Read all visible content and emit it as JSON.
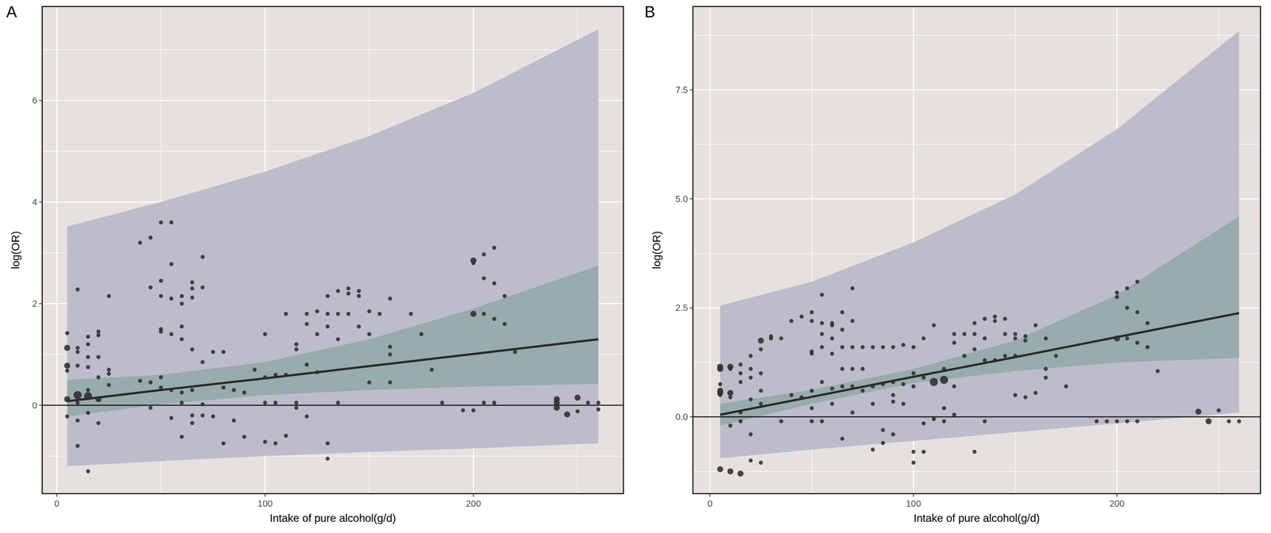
{
  "chart_data": [
    {
      "type": "scatter",
      "title": "A",
      "xlabel": "Intake of pure alcohol(g/d)",
      "ylabel": "log(OR)",
      "xlim": [
        -7,
        272
      ],
      "ylim": [
        -1.74,
        7.85
      ],
      "xticks": [
        0,
        100,
        200
      ],
      "yticks": [
        0,
        2,
        4,
        6
      ],
      "grid": true,
      "reference_line": 0,
      "series": [
        {
          "type": "band",
          "color": "#bcbccb",
          "x": [
            5,
            50,
            100,
            150,
            200,
            260
          ],
          "lower": [
            -1.2,
            -1.1,
            -1.0,
            -0.92,
            -0.85,
            -0.75
          ],
          "upper": [
            3.52,
            4.0,
            4.6,
            5.3,
            6.15,
            7.4
          ]
        },
        {
          "type": "band",
          "color": "#98abad",
          "x": [
            5,
            50,
            100,
            150,
            200,
            260
          ],
          "lower": [
            -0.22,
            0.02,
            0.2,
            0.3,
            0.37,
            0.42
          ],
          "upper": [
            0.5,
            0.6,
            0.85,
            1.3,
            1.9,
            2.75
          ]
        },
        {
          "type": "line",
          "color": "#2a2a2a",
          "x": [
            5,
            50,
            100,
            150,
            200,
            260
          ],
          "values": [
            0.08,
            0.3,
            0.53,
            0.77,
            1.01,
            1.3
          ]
        },
        {
          "type": "scatter",
          "color": "#2e2e2e",
          "marker": "circle",
          "x": [
            5,
            5,
            5,
            5,
            5,
            5,
            10,
            10,
            10,
            10,
            10,
            10,
            10,
            10,
            15,
            15,
            15,
            15,
            15,
            15,
            15,
            15,
            20,
            20,
            20,
            20,
            20,
            20,
            25,
            25,
            25,
            25,
            40,
            40,
            45,
            45,
            45,
            45,
            50,
            50,
            50,
            50,
            50,
            50,
            50,
            55,
            55,
            55,
            55,
            55,
            55,
            60,
            60,
            60,
            60,
            60,
            60,
            60,
            65,
            65,
            65,
            65,
            65,
            65,
            65,
            70,
            70,
            70,
            70,
            70,
            75,
            75,
            80,
            80,
            80,
            85,
            85,
            90,
            90,
            95,
            100,
            100,
            100,
            100,
            105,
            105,
            105,
            110,
            110,
            110,
            115,
            115,
            115,
            115,
            120,
            120,
            120,
            120,
            125,
            125,
            125,
            130,
            130,
            130,
            130,
            130,
            135,
            135,
            135,
            135,
            140,
            140,
            140,
            145,
            145,
            145,
            150,
            150,
            150,
            155,
            160,
            160,
            160,
            160,
            170,
            175,
            180,
            185,
            195,
            200,
            200,
            200,
            200,
            205,
            205,
            205,
            205,
            210,
            210,
            210,
            210,
            215,
            215,
            220,
            240,
            240,
            240,
            245,
            250,
            250,
            255,
            260,
            260
          ],
          "values": [
            1.42,
            1.13,
            0.78,
            0.68,
            0.12,
            -0.22,
            2.28,
            1.13,
            1.05,
            0.78,
            0.2,
            -0.3,
            -0.8,
            0.05,
            1.35,
            1.2,
            0.95,
            0.75,
            0.3,
            0.18,
            -0.15,
            -1.3,
            1.45,
            1.38,
            0.95,
            0.55,
            0.12,
            -0.35,
            2.15,
            0.7,
            0.62,
            0.4,
            3.2,
            0.48,
            3.3,
            2.32,
            0.45,
            -0.05,
            3.6,
            2.45,
            2.15,
            1.5,
            1.45,
            0.55,
            0.35,
            3.6,
            2.78,
            2.1,
            1.4,
            0.3,
            -0.25,
            2.15,
            2.0,
            1.55,
            1.3,
            0.25,
            0.05,
            -0.62,
            2.42,
            2.3,
            2.12,
            1.1,
            0.3,
            -0.2,
            -0.35,
            2.92,
            2.32,
            0.85,
            0.02,
            -0.2,
            1.05,
            -0.22,
            1.05,
            0.35,
            -0.75,
            0.3,
            -0.3,
            0.25,
            -0.62,
            0.7,
            1.4,
            0.55,
            0.05,
            -0.72,
            0.6,
            0.05,
            -0.75,
            1.8,
            0.6,
            -0.6,
            1.2,
            1.1,
            0.05,
            -0.05,
            1.8,
            1.6,
            0.8,
            -0.22,
            1.85,
            1.4,
            0.65,
            2.15,
            1.8,
            1.55,
            -0.75,
            -1.05,
            2.25,
            1.8,
            1.3,
            0.05,
            2.3,
            2.2,
            1.8,
            2.25,
            2.15,
            1.55,
            1.85,
            1.4,
            0.45,
            1.8,
            2.1,
            1.15,
            1.0,
            0.45,
            1.8,
            1.4,
            0.7,
            0.05,
            -0.1,
            2.85,
            2.8,
            1.8,
            -0.1,
            2.97,
            2.5,
            1.8,
            0.05,
            3.1,
            2.4,
            1.7,
            0.05,
            2.15,
            1.6,
            1.05,
            0.12,
            0.05,
            -0.05,
            -0.18,
            0.15,
            -0.12,
            0.05,
            0.05,
            -0.08
          ],
          "size": [
            1,
            2,
            2,
            1,
            2,
            1,
            1,
            1,
            1,
            1,
            3,
            1,
            1,
            1,
            1,
            1,
            1,
            1,
            1,
            3,
            1,
            1,
            1,
            1,
            1,
            1,
            2,
            1,
            1,
            1,
            1,
            1,
            1,
            1,
            1,
            1,
            1,
            1,
            1,
            1,
            1,
            1,
            1,
            1,
            1,
            1,
            1,
            1,
            1,
            1,
            1,
            1,
            1,
            1,
            1,
            1,
            1,
            1,
            1,
            1,
            1,
            1,
            1,
            1,
            1,
            1,
            1,
            1,
            1,
            1,
            1,
            1,
            1,
            1,
            1,
            1,
            1,
            1,
            1,
            1,
            1,
            1,
            1,
            1,
            1,
            1,
            1,
            1,
            1,
            1,
            1,
            1,
            1,
            1,
            1,
            1,
            1,
            1,
            1,
            1,
            1,
            1,
            1,
            1,
            1,
            1,
            1,
            1,
            1,
            1,
            1,
            1,
            1,
            1,
            1,
            1,
            1,
            1,
            1,
            1,
            1,
            1,
            1,
            1,
            1,
            1,
            1,
            1,
            1,
            2,
            1,
            2,
            1,
            1,
            1,
            1,
            1,
            1,
            1,
            1,
            1,
            1,
            1,
            1,
            2,
            2,
            2,
            2,
            2,
            1,
            1,
            1,
            1
          ]
        }
      ]
    },
    {
      "type": "scatter",
      "title": "B",
      "xlabel": "Intake of pure alcohol(g/d)",
      "ylabel": "log(OR)",
      "xlim": [
        -8.4,
        270.5
      ],
      "ylim": [
        -1.76,
        9.41
      ],
      "xticks": [
        0,
        100,
        200
      ],
      "yticks": [
        {
          "value": 0,
          "label": "0.0"
        },
        2.5,
        {
          "value": 5,
          "label": "5.0"
        },
        7.5
      ],
      "grid": true,
      "reference_line": 0,
      "series": [
        {
          "type": "band",
          "color": "#bcbccb",
          "x": [
            5,
            50,
            100,
            150,
            200,
            260
          ],
          "lower": [
            -0.95,
            -0.75,
            -0.55,
            -0.35,
            -0.15,
            0.1
          ],
          "upper": [
            2.55,
            3.1,
            4.0,
            5.1,
            6.6,
            8.85
          ]
        },
        {
          "type": "band",
          "color": "#98abad",
          "x": [
            5,
            50,
            100,
            150,
            200,
            260
          ],
          "lower": [
            -0.2,
            0.3,
            0.78,
            1.05,
            1.25,
            1.35
          ],
          "upper": [
            0.3,
            0.62,
            1.1,
            1.75,
            2.8,
            4.6
          ]
        },
        {
          "type": "line",
          "color": "#2a2a2a",
          "x": [
            5,
            50,
            100,
            150,
            200,
            260
          ],
          "values": [
            0.05,
            0.46,
            0.92,
            1.37,
            1.83,
            2.38
          ]
        },
        {
          "type": "scatter",
          "color": "#2e2e2e",
          "marker": "circle",
          "x": [
            5,
            5,
            5,
            5,
            5,
            5,
            5,
            10,
            10,
            10,
            10,
            10,
            10,
            15,
            15,
            15,
            15,
            15,
            15,
            20,
            20,
            20,
            20,
            20,
            20,
            25,
            25,
            25,
            25,
            25,
            25,
            30,
            30,
            35,
            35,
            40,
            40,
            45,
            45,
            50,
            50,
            50,
            50,
            50,
            50,
            50,
            55,
            55,
            55,
            55,
            55,
            55,
            60,
            60,
            60,
            60,
            60,
            60,
            65,
            65,
            65,
            65,
            65,
            65,
            70,
            70,
            70,
            70,
            70,
            70,
            75,
            75,
            75,
            80,
            80,
            80,
            80,
            85,
            85,
            85,
            85,
            90,
            90,
            90,
            90,
            90,
            95,
            95,
            95,
            100,
            100,
            100,
            100,
            100,
            105,
            105,
            105,
            105,
            110,
            110,
            110,
            115,
            115,
            115,
            115,
            120,
            120,
            120,
            120,
            125,
            125,
            130,
            130,
            130,
            130,
            135,
            135,
            135,
            135,
            140,
            140,
            140,
            145,
            145,
            145,
            150,
            150,
            150,
            150,
            155,
            155,
            155,
            160,
            160,
            165,
            165,
            165,
            170,
            175,
            190,
            195,
            200,
            200,
            200,
            200,
            205,
            205,
            205,
            205,
            210,
            210,
            210,
            210,
            215,
            215,
            220,
            240,
            245,
            250,
            255,
            260
          ],
          "values": [
            1.15,
            1.1,
            0.75,
            0.6,
            0.55,
            0.5,
            -1.2,
            1.15,
            1.1,
            0.55,
            0.45,
            -0.2,
            -1.25,
            1.2,
            1.0,
            0.8,
            0.1,
            -0.1,
            -1.3,
            1.4,
            1.1,
            0.9,
            0.4,
            -0.4,
            -1.0,
            1.75,
            1.55,
            1.0,
            0.6,
            0.3,
            -1.05,
            1.85,
            1.8,
            1.8,
            -0.1,
            2.2,
            0.5,
            2.3,
            0.45,
            2.4,
            2.2,
            1.5,
            1.45,
            0.6,
            0.2,
            -0.1,
            2.8,
            2.15,
            1.9,
            1.6,
            0.8,
            -0.1,
            2.15,
            2.1,
            1.8,
            1.45,
            0.65,
            0.3,
            2.4,
            2.0,
            1.6,
            1.1,
            0.7,
            -0.5,
            2.95,
            2.2,
            1.6,
            1.1,
            0.7,
            0.1,
            1.6,
            1.1,
            0.6,
            1.6,
            0.7,
            0.3,
            -0.75,
            1.6,
            0.75,
            -0.3,
            -0.6,
            1.6,
            0.8,
            0.5,
            0.35,
            -0.4,
            1.65,
            0.75,
            0.3,
            1.6,
            1.0,
            0.7,
            -0.8,
            -1.05,
            1.8,
            0.9,
            -0.15,
            -0.8,
            2.1,
            0.8,
            -0.05,
            1.1,
            0.85,
            0.2,
            -0.1,
            1.9,
            1.7,
            0.7,
            0.05,
            1.9,
            1.4,
            2.15,
            1.9,
            1.55,
            -0.8,
            2.25,
            1.8,
            1.3,
            -0.1,
            2.3,
            2.2,
            1.3,
            2.25,
            1.9,
            1.4,
            1.9,
            1.8,
            1.4,
            0.5,
            1.85,
            1.75,
            0.45,
            2.1,
            0.55,
            1.8,
            1.1,
            0.9,
            1.4,
            0.7,
            -0.1,
            -0.1,
            2.85,
            2.75,
            1.8,
            -0.1,
            2.95,
            2.5,
            1.8,
            -0.1,
            3.1,
            2.4,
            1.7,
            -0.1,
            2.15,
            1.6,
            1.05,
            0.12,
            -0.1,
            0.15,
            -0.1,
            -0.1
          ],
          "size": [
            2,
            2,
            1,
            2,
            2,
            1,
            2,
            2,
            1,
            2,
            1,
            1,
            2,
            1,
            1,
            1,
            1,
            1,
            2,
            1,
            1,
            1,
            1,
            1,
            1,
            2,
            1,
            1,
            1,
            1,
            1,
            1,
            1,
            1,
            1,
            1,
            1,
            1,
            1,
            1,
            1,
            1,
            1,
            1,
            1,
            1,
            1,
            1,
            1,
            1,
            1,
            1,
            1,
            1,
            1,
            1,
            1,
            1,
            1,
            1,
            1,
            1,
            1,
            1,
            1,
            1,
            1,
            1,
            1,
            1,
            1,
            1,
            1,
            1,
            1,
            1,
            1,
            1,
            1,
            1,
            1,
            1,
            1,
            1,
            1,
            1,
            1,
            1,
            1,
            1,
            1,
            1,
            1,
            1,
            1,
            1,
            1,
            1,
            1,
            3,
            1,
            1,
            3,
            1,
            1,
            1,
            1,
            1,
            1,
            1,
            1,
            1,
            1,
            1,
            1,
            1,
            1,
            1,
            1,
            1,
            1,
            1,
            1,
            1,
            1,
            1,
            1,
            1,
            1,
            1,
            1,
            1,
            1,
            1,
            1,
            1,
            1,
            1,
            1,
            1,
            1,
            1,
            1,
            2,
            1,
            1,
            1,
            1,
            1,
            1,
            1,
            1,
            1,
            1,
            1,
            1,
            2,
            2,
            1,
            1,
            1
          ]
        }
      ]
    }
  ]
}
